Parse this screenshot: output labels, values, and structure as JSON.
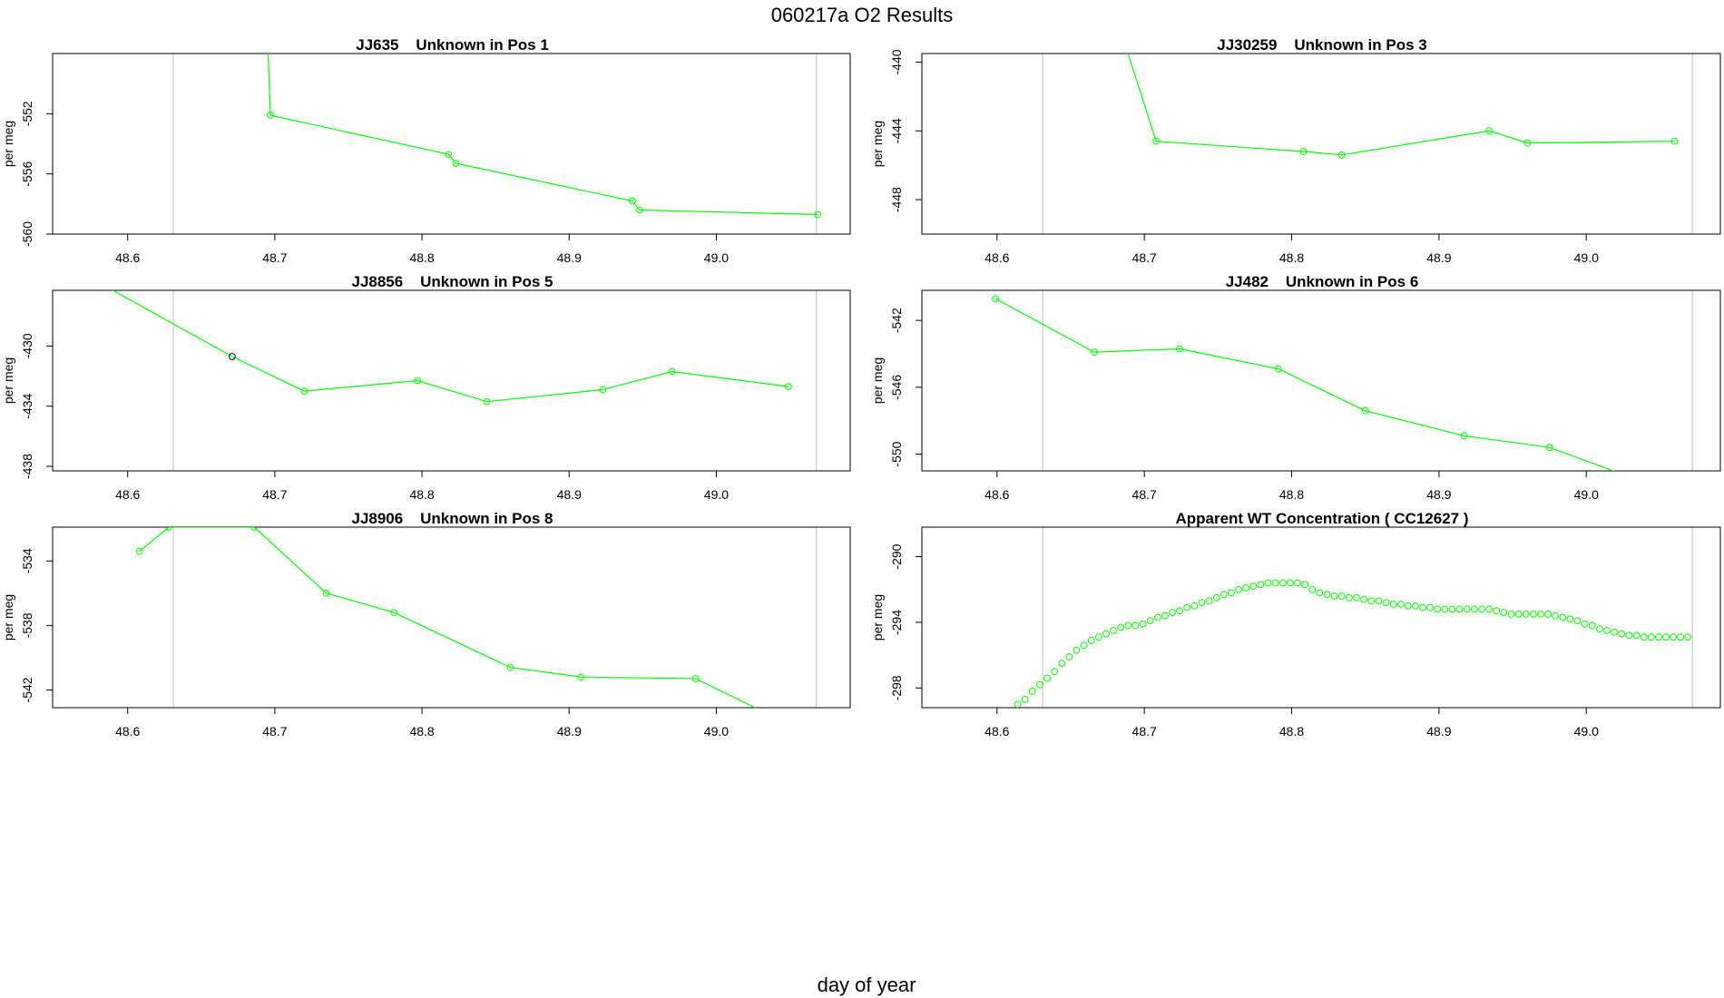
{
  "figure": {
    "title": "060217a  O2 Results",
    "xlabel": "day of year",
    "line_color": "#00ff00",
    "highlight_color": "#000000",
    "axis_color": "#000000",
    "vline_color": "#bebebe"
  },
  "chart_data": [
    {
      "type": "line",
      "title": "JJ635    Unknown in Pos 1",
      "ylabel": "per meg",
      "xlim": [
        48.549,
        49.091
      ],
      "ylim": [
        -560.0,
        -548.0
      ],
      "xticks": [
        48.6,
        48.7,
        48.8,
        48.9,
        49.0
      ],
      "xtick_labels": [
        "48.6",
        "48.7",
        "48.8",
        "48.9",
        "49.0"
      ],
      "yticks": [
        -552,
        -556,
        -560
      ],
      "ytick_labels": [
        "-552",
        "-556",
        "-560"
      ],
      "vlines": [
        48.631,
        49.068
      ],
      "line_start": {
        "x": 48.694,
        "y": -544.0
      },
      "x": [
        48.697,
        48.818,
        48.823,
        48.943,
        48.948,
        49.069
      ],
      "y": [
        -552.1,
        -554.7,
        -555.3,
        -557.8,
        -558.4,
        -558.7
      ],
      "highlight_index": []
    },
    {
      "type": "line",
      "title": "JJ30259    Unknown in Pos 3",
      "ylabel": "per meg",
      "xlim": [
        48.549,
        49.091
      ],
      "ylim": [
        -450.0,
        -439.5
      ],
      "xticks": [
        48.6,
        48.7,
        48.8,
        48.9,
        49.0
      ],
      "xtick_labels": [
        "48.6",
        "48.7",
        "48.8",
        "48.9",
        "49.0"
      ],
      "yticks": [
        -440,
        -444,
        -448
      ],
      "ytick_labels": [
        "-440",
        "-444",
        "-448"
      ],
      "vlines": [
        48.631,
        49.072
      ],
      "line_start": {
        "x": 48.687,
        "y": -439.0
      },
      "x": [
        48.708,
        48.808,
        48.834,
        48.934,
        48.96,
        49.06
      ],
      "y": [
        -444.6,
        -445.2,
        -445.4,
        -444.0,
        -444.7,
        -444.6
      ],
      "highlight_index": []
    },
    {
      "type": "line",
      "title": "JJ8856    Unknown in Pos 5",
      "ylabel": "per meg",
      "xlim": [
        48.549,
        49.091
      ],
      "ylim": [
        -438.3,
        -426.3
      ],
      "xticks": [
        48.6,
        48.7,
        48.8,
        48.9,
        49.0
      ],
      "xtick_labels": [
        "48.6",
        "48.7",
        "48.8",
        "48.9",
        "49.0"
      ],
      "yticks": [
        -430,
        -434,
        -438
      ],
      "ytick_labels": [
        "-430",
        "-434",
        "-438"
      ],
      "vlines": [
        48.631,
        49.068
      ],
      "line_start": {
        "x": 48.59,
        "y": -426.3
      },
      "x": [
        48.671,
        48.72,
        48.797,
        48.844,
        48.923,
        48.97,
        49.049
      ],
      "y": [
        -430.7,
        -433.0,
        -432.3,
        -433.7,
        -432.9,
        -431.7,
        -432.7
      ],
      "highlight_index": [
        0
      ]
    },
    {
      "type": "line",
      "title": "JJ482    Unknown in Pos 6",
      "ylabel": "per meg",
      "xlim": [
        48.549,
        49.091
      ],
      "ylim": [
        -551.0,
        -540.2
      ],
      "xticks": [
        48.6,
        48.7,
        48.8,
        48.9,
        49.0
      ],
      "xtick_labels": [
        "48.6",
        "48.7",
        "48.8",
        "48.9",
        "49.0"
      ],
      "yticks": [
        -542,
        -546,
        -550
      ],
      "ytick_labels": [
        "-542",
        "-546",
        "-550"
      ],
      "vlines": [
        48.631,
        49.072
      ],
      "line_start": null,
      "x": [
        48.599,
        48.666,
        48.724,
        48.791,
        48.85,
        48.917,
        48.975,
        49.043
      ],
      "y": [
        -540.7,
        -543.9,
        -543.7,
        -544.9,
        -547.4,
        -548.9,
        -549.6,
        -551.8
      ],
      "highlight_index": []
    },
    {
      "type": "line",
      "title": "JJ8906    Unknown in Pos 8",
      "ylabel": "per meg",
      "xlim": [
        48.549,
        49.091
      ],
      "ylim": [
        -543.1,
        -531.9
      ],
      "xticks": [
        48.6,
        48.7,
        48.8,
        48.9,
        49.0
      ],
      "xtick_labels": [
        "48.6",
        "48.7",
        "48.8",
        "48.9",
        "49.0"
      ],
      "yticks": [
        -534,
        -538,
        -542
      ],
      "ytick_labels": [
        "-534",
        "-538",
        "-542"
      ],
      "vlines": [
        48.631,
        49.068
      ],
      "line_start": null,
      "x": [
        48.608,
        48.628,
        48.686,
        48.735,
        48.781,
        48.86,
        48.908,
        48.986,
        49.033
      ],
      "y": [
        -533.4,
        -531.9,
        -531.9,
        -536.0,
        -537.2,
        -540.6,
        -541.2,
        -541.3,
        -543.4
      ],
      "highlight_index": []
    },
    {
      "type": "scatter",
      "title": "Apparent WT Concentration ( CC12627 )",
      "ylabel": "per meg",
      "xlim": [
        48.549,
        49.091
      ],
      "ylim": [
        -299.2,
        -288.2
      ],
      "xticks": [
        48.6,
        48.7,
        48.8,
        48.9,
        49.0
      ],
      "xtick_labels": [
        "48.6",
        "48.7",
        "48.8",
        "48.9",
        "49.0"
      ],
      "yticks": [
        -290,
        -294,
        -298
      ],
      "ytick_labels": [
        "-290",
        "-294",
        "-298"
      ],
      "vlines": [
        48.631,
        49.072
      ],
      "x": [
        48.614,
        48.619,
        48.624,
        48.629,
        48.634,
        48.639,
        48.644,
        48.649,
        48.654,
        48.659,
        48.664,
        48.669,
        48.674,
        48.679,
        48.684,
        48.689,
        48.694,
        48.699,
        48.704,
        48.709,
        48.714,
        48.719,
        48.724,
        48.729,
        48.734,
        48.739,
        48.744,
        48.749,
        48.754,
        48.759,
        48.764,
        48.769,
        48.774,
        48.779,
        48.784,
        48.789,
        48.794,
        48.799,
        48.804,
        48.809,
        48.814,
        48.819,
        48.824,
        48.829,
        48.834,
        48.839,
        48.844,
        48.849,
        48.854,
        48.859,
        48.864,
        48.869,
        48.874,
        48.879,
        48.884,
        48.889,
        48.894,
        48.899,
        48.904,
        48.909,
        48.914,
        48.919,
        48.924,
        48.929,
        48.934,
        48.939,
        48.944,
        48.949,
        48.954,
        48.959,
        48.964,
        48.969,
        48.974,
        48.979,
        48.984,
        48.989,
        48.994,
        48.999,
        49.004,
        49.009,
        49.014,
        49.019,
        49.024,
        49.029,
        49.034,
        49.039,
        49.044,
        49.049,
        49.054,
        49.059,
        49.064,
        49.069
      ],
      "y": [
        -299.0,
        -298.7,
        -298.2,
        -297.8,
        -297.4,
        -297.0,
        -296.5,
        -296.1,
        -295.7,
        -295.4,
        -295.1,
        -294.9,
        -294.7,
        -294.5,
        -294.3,
        -294.2,
        -294.2,
        -294.1,
        -293.9,
        -293.7,
        -293.6,
        -293.4,
        -293.3,
        -293.1,
        -293.0,
        -292.8,
        -292.7,
        -292.5,
        -292.3,
        -292.2,
        -292.0,
        -291.9,
        -291.8,
        -291.7,
        -291.6,
        -291.6,
        -291.6,
        -291.6,
        -291.6,
        -291.7,
        -292.0,
        -292.2,
        -292.3,
        -292.4,
        -292.4,
        -292.5,
        -292.5,
        -292.6,
        -292.7,
        -292.7,
        -292.8,
        -292.9,
        -292.9,
        -293.0,
        -293.0,
        -293.1,
        -293.1,
        -293.2,
        -293.2,
        -293.2,
        -293.2,
        -293.2,
        -293.2,
        -293.2,
        -293.2,
        -293.3,
        -293.4,
        -293.5,
        -293.5,
        -293.5,
        -293.5,
        -293.5,
        -293.5,
        -293.6,
        -293.7,
        -293.8,
        -293.9,
        -294.1,
        -294.2,
        -294.4,
        -294.5,
        -294.6,
        -294.7,
        -294.8,
        -294.8,
        -294.9,
        -294.9,
        -294.9,
        -294.9,
        -294.9,
        -294.9,
        -294.9
      ],
      "highlight_index": []
    }
  ]
}
